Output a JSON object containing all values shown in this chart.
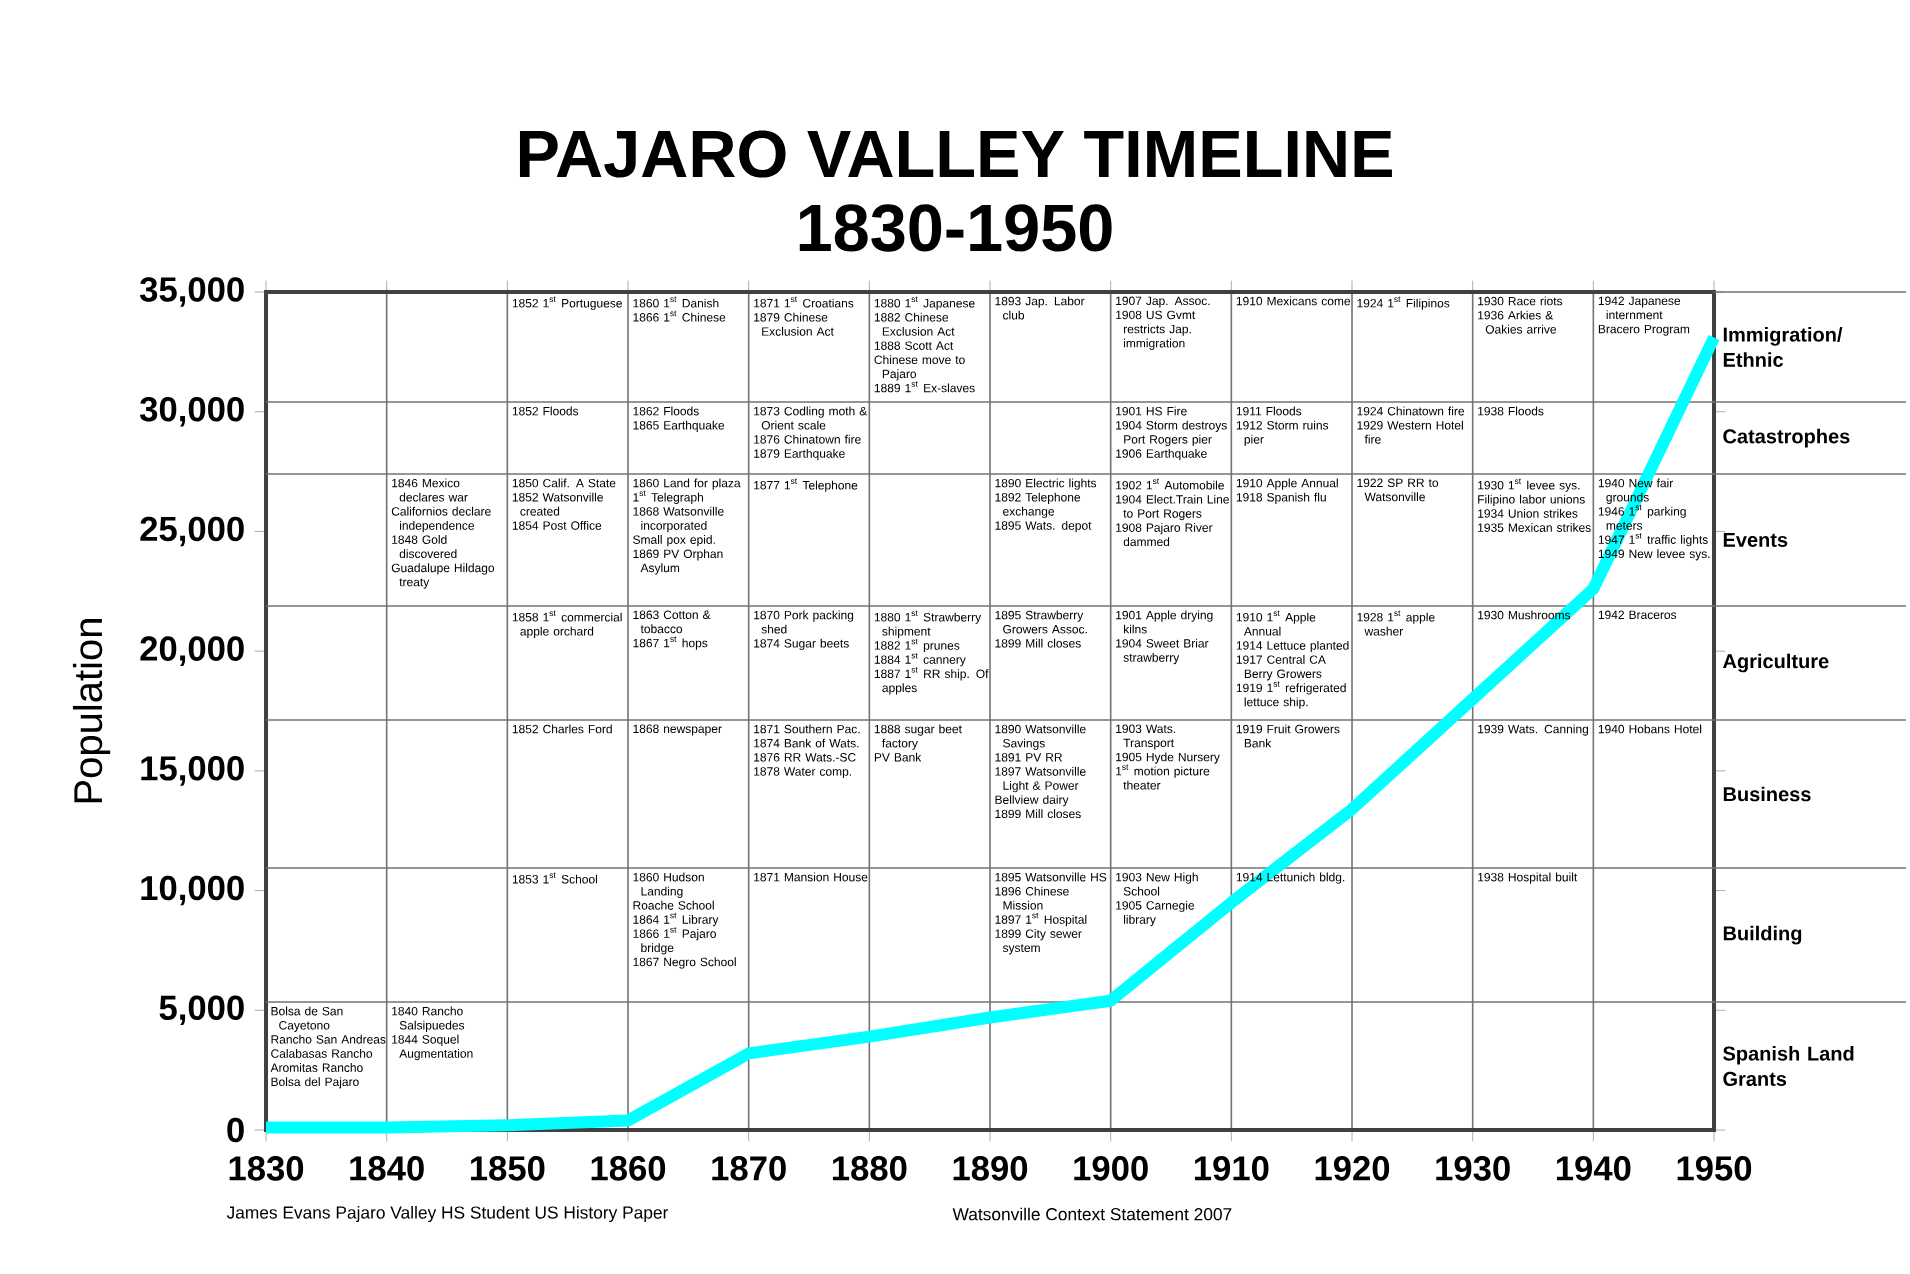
{
  "chart_data": {
    "type": "line",
    "title": "PAJARO VALLEY TIMELINE",
    "subtitle": "1830-1950",
    "ylabel": "Population",
    "x": [
      1830,
      1840,
      1850,
      1860,
      1870,
      1880,
      1890,
      1900,
      1910,
      1920,
      1930,
      1940,
      1950
    ],
    "series": [
      {
        "color": "#00ffff",
        "values": [
          100,
          100,
          200,
          400,
          3200,
          3900,
          4700,
          5400,
          9500,
          13400,
          18000,
          22600,
          33100
        ]
      }
    ],
    "xlim": [
      1830,
      1950
    ],
    "ylim": [
      0,
      35000
    ],
    "xticks": [
      1830,
      1840,
      1850,
      1860,
      1870,
      1880,
      1890,
      1900,
      1910,
      1920,
      1930,
      1940,
      1950
    ],
    "yticks": [
      {
        "value": 0,
        "label": "0"
      },
      {
        "value": 5000,
        "label": "5,000"
      },
      {
        "value": 10000,
        "label": "10,000"
      },
      {
        "value": 15000,
        "label": "15,000"
      },
      {
        "value": 20000,
        "label": "20,000"
      },
      {
        "value": 25000,
        "label": "25,000"
      },
      {
        "value": 30000,
        "label": "30,000"
      },
      {
        "value": 35000,
        "label": "35,000"
      }
    ],
    "grid": "x",
    "marker": "none",
    "line_style": "solid",
    "annotations": [
      "Immigration/ Ethnic",
      "Catastrophes",
      "Events",
      "Agriculture",
      "Business",
      "Building",
      "Spanish Land Grants",
      "1852 1$^{st}$ Portuguese",
      "1860 1$^{st}$ Danish",
      "1866 1$^{st}$ Chinese",
      "1871 1$^{st}$ Croatians",
      "1879 Chinese Exclusion Act",
      "1880 1$^{st}$ Japanese",
      "1882 Chinese Exclusion Act",
      "1888 Scott Act",
      "Chinese move to Pajaro",
      "1889 1$^{st}$ Ex-slaves",
      "1893 Jap. Labor club",
      "1907 Jap. Assoc.",
      "1908 US Gvmt restricts Jap. immigration",
      "1910 Mexicans come",
      "1924 1$^{st}$ Filipinos",
      "1930 Race riots",
      "1936 Arkies & Oakies arrive",
      "1942 Japanese internment",
      "Bracero Program",
      "1852 Floods",
      "1862 Floods",
      "1865 Earthquake",
      "1873 Codling moth & Orient scale",
      "1876 Chinatown fire",
      "1879 Earthquake",
      "1901 HS Fire",
      "1904 Storm destroys Port Rogers pier",
      "1906 Earthquake",
      "1911 Floods",
      "1912 Storm ruins pier",
      "1924 Chinatown fire",
      "1929 Western Hotel fire",
      "1938 Floods",
      "1846 Mexico declares war",
      "Californios declare independence",
      "1848 Gold discovered",
      "Guadalupe Hildago treaty",
      "1850 Calif. A State",
      "1852 Watsonville created",
      "1854 Post Office",
      "1860 Land for plaza",
      "1$^{st}$ Telegraph",
      "1868 Watsonville incorporated",
      "Small pox epid.",
      "1869 PV Orphan Asylum",
      "1877 1$^{st}$ Telephone",
      "1890 Electric lights",
      "1892 Telephone exchange",
      "1895 Wats. depot",
      "1902 1$^{st}$ Automobile",
      "1904 Elect.Train Line to Port Rogers",
      "1908 Pajaro River dammed",
      "1910 Apple Annual",
      "1918 Spanish flu",
      "1922 SP RR to Watsonville",
      "1930 1$^{st}$ levee sys.",
      "Filipino labor unions",
      "1934 Union strikes",
      "1935 Mexican strikes",
      "1940 New fair grounds",
      "1946 1$^{st}$ parking meters",
      "1947 1$^{st}$ traffic lights",
      "1949 New levee sys.",
      "1858 1$^{st}$ commercial apple orchard",
      "1863 Cotton & tobacco",
      "1867 1$^{st}$ hops",
      "1870 Pork packing shed",
      "1874 Sugar beets",
      "1880 1$^{st}$ Strawberry shipment",
      "1882 1$^{st}$ prunes",
      "1884 1$^{st}$ cannery",
      "1887 1$^{st}$ RR ship. Of apples",
      "1895 Strawberry Growers Assoc.",
      "1899 Mill closes",
      "1901 Apple drying kilns",
      "1904 Sweet Briar strawberry",
      "1910 1$^{st}$ Apple Annual",
      "1914 Lettuce planted",
      "1917 Central CA Berry Growers",
      "1919 1$^{st}$ refrigerated lettuce ship.",
      "1928 1$^{st}$ apple washer",
      "1930 Mushrooms",
      "1942 Braceros",
      "1852 Charles Ford",
      "1868 newspaper",
      "1871 Southern Pac.",
      "1874 Bank of Wats.",
      "1876 RR Wats.-SC",
      "1878 Water comp.",
      "1888 sugar beet factory",
      "PV Bank",
      "1890 Watsonville Savings",
      "1891 PV RR",
      "1897 Watsonville Light & Power",
      "Bellview dairy",
      "1899 Mill closes",
      "1903 Wats. Transport",
      "1905 Hyde Nursery",
      "1$^{st}$ motion picture theater",
      "1919 Fruit Growers Bank",
      "1939 Wats. Canning",
      "1940 Hobans Hotel",
      "1853 1$^{st}$ School",
      "1860 Hudson Landing",
      "Roache School",
      "1864 1$^{st}$ Library",
      "1866 1$^{st}$ Pajaro bridge",
      "1867 Negro School",
      "1871 Mansion House",
      "1895 Watsonville HS",
      "1896 Chinese Mission",
      "1897 1$^{st}$ Hospital",
      "1899 City sewer system",
      "1903 New High School",
      "1905 Carnegie library",
      "1914 Lettunich bldg.",
      "1938 Hospital built",
      "Bolsa de San Cayetono",
      "Rancho San Andreas",
      "Calabasas Rancho",
      "Aromitas Rancho",
      "Bolsa del Pajaro",
      "1840 Rancho Salsipuedes",
      "1844 Soquel Augmentation",
      "James Evans Pajaro Valley HS Student US History Paper",
      "Watsonville Context Statement 2007"
    ]
  }
}
